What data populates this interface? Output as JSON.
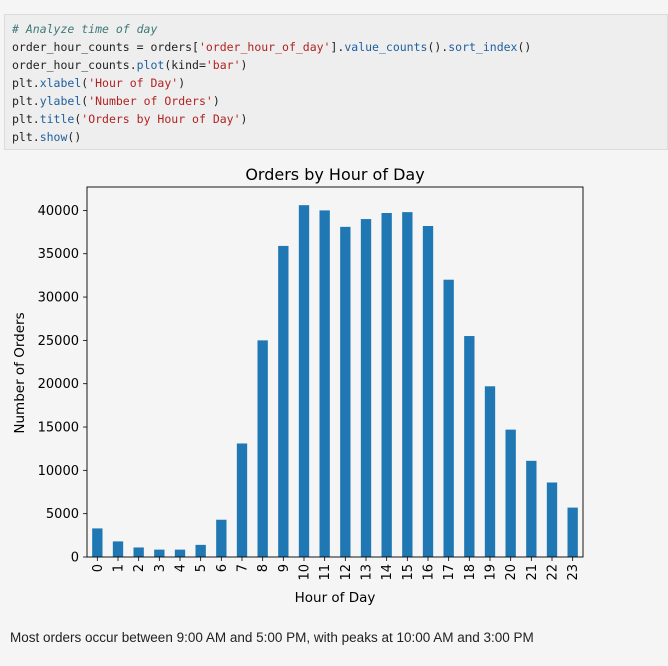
{
  "code": {
    "lines": [
      {
        "parts": [
          {
            "t": "# Analyze time of day",
            "c": "cm"
          }
        ]
      },
      {
        "parts": [
          {
            "t": "order_hour_counts = orders[",
            "c": ""
          },
          {
            "t": "'order_hour_of_day'",
            "c": "str"
          },
          {
            "t": "].",
            "c": ""
          },
          {
            "t": "value_counts",
            "c": "fn"
          },
          {
            "t": "().",
            "c": ""
          },
          {
            "t": "sort_index",
            "c": "fn"
          },
          {
            "t": "()",
            "c": ""
          }
        ]
      },
      {
        "parts": [
          {
            "t": "order_hour_counts.",
            "c": ""
          },
          {
            "t": "plot",
            "c": "fn"
          },
          {
            "t": "(kind=",
            "c": ""
          },
          {
            "t": "'bar'",
            "c": "str"
          },
          {
            "t": ")",
            "c": ""
          }
        ]
      },
      {
        "parts": [
          {
            "t": "plt.",
            "c": ""
          },
          {
            "t": "xlabel",
            "c": "fn"
          },
          {
            "t": "(",
            "c": ""
          },
          {
            "t": "'Hour of Day'",
            "c": "str"
          },
          {
            "t": ")",
            "c": ""
          }
        ]
      },
      {
        "parts": [
          {
            "t": "plt.",
            "c": ""
          },
          {
            "t": "ylabel",
            "c": "fn"
          },
          {
            "t": "(",
            "c": ""
          },
          {
            "t": "'Number of Orders'",
            "c": "str"
          },
          {
            "t": ")",
            "c": ""
          }
        ]
      },
      {
        "parts": [
          {
            "t": "plt.",
            "c": ""
          },
          {
            "t": "title",
            "c": "fn"
          },
          {
            "t": "(",
            "c": ""
          },
          {
            "t": "'Orders by Hour of Day'",
            "c": "str"
          },
          {
            "t": ")",
            "c": ""
          }
        ]
      },
      {
        "parts": [
          {
            "t": "plt.",
            "c": ""
          },
          {
            "t": "show",
            "c": "fn"
          },
          {
            "t": "()",
            "c": ""
          }
        ]
      }
    ]
  },
  "chart_data": {
    "type": "bar",
    "title": "Orders by Hour of Day",
    "xlabel": "Hour of Day",
    "ylabel": "Number of Orders",
    "categories": [
      "0",
      "1",
      "2",
      "3",
      "4",
      "5",
      "6",
      "7",
      "8",
      "9",
      "10",
      "11",
      "12",
      "13",
      "14",
      "15",
      "16",
      "17",
      "18",
      "19",
      "20",
      "21",
      "22",
      "23"
    ],
    "values": [
      3300,
      1800,
      1100,
      850,
      850,
      1400,
      4300,
      13100,
      25000,
      35900,
      40600,
      40000,
      38100,
      39000,
      39700,
      39800,
      38200,
      32000,
      25500,
      19700,
      14700,
      11100,
      8600,
      5700
    ],
    "yticks": [
      0,
      5000,
      10000,
      15000,
      20000,
      25000,
      30000,
      35000,
      40000
    ],
    "ylim": [
      0,
      42700
    ],
    "bar_color": "#1f77b4",
    "grid": false
  },
  "note": "Most orders occur between 9:00 AM and 5:00 PM, with peaks at 10:00 AM and 3:00 PM"
}
